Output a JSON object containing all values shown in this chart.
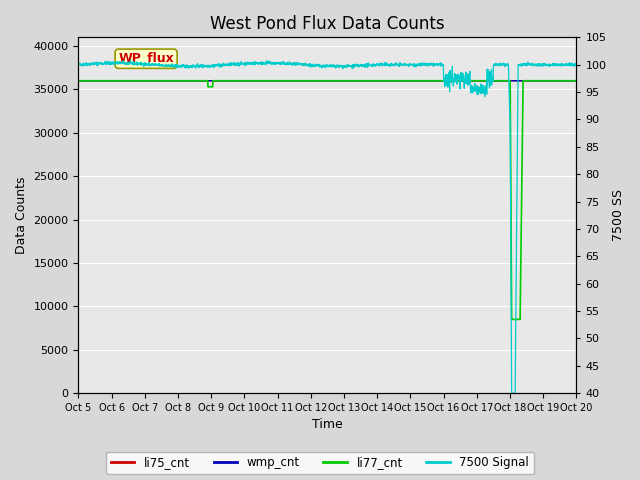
{
  "title": "West Pond Flux Data Counts",
  "xlabel": "Time",
  "ylabel_left": "Data Counts",
  "ylabel_right": "7500 SS",
  "annotation_text": "WP_flux",
  "ylim_left": [
    0,
    41000
  ],
  "ylim_right": [
    40,
    105
  ],
  "yticks_left": [
    0,
    5000,
    10000,
    15000,
    20000,
    25000,
    30000,
    35000,
    40000
  ],
  "yticks_right": [
    40,
    45,
    50,
    55,
    60,
    65,
    70,
    75,
    80,
    85,
    90,
    95,
    100,
    105
  ],
  "xtick_labels": [
    "Oct 5",
    "Oct 6",
    "Oct 7",
    "Oct 8",
    "Oct 9",
    "Oct 10",
    "Oct 11",
    "Oct 12",
    "Oct 13",
    "Oct 14",
    "Oct 15",
    "Oct 16",
    "Oct 17",
    "Oct 18",
    "Oct 19",
    "Oct 20"
  ],
  "li75_color": "#cc0000",
  "wmp_color": "#0000bb",
  "li77_color": "#00cc00",
  "signal7500_color": "#00cccc",
  "bg_color": "#e8e8e8",
  "grid_color": "#ffffff",
  "title_fontsize": 12,
  "axis_fontsize": 9,
  "tick_fontsize": 8
}
